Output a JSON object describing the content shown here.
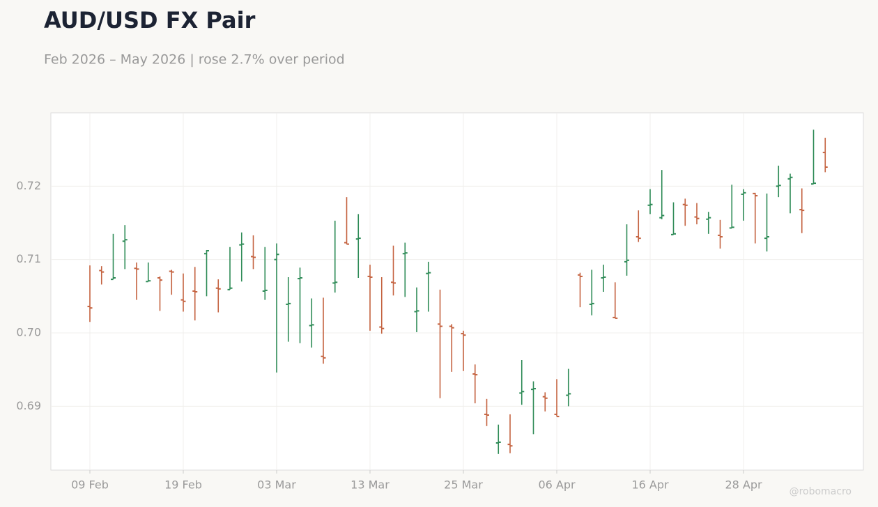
{
  "chart_data": {
    "type": "ohlc",
    "title": "AUD/USD FX Pair",
    "subtitle": "Feb 2026 – May 2026 | rose 2.7% over period",
    "watermark": "@robomacro",
    "categories": [
      "09 Feb",
      null,
      null,
      null,
      null,
      null,
      null,
      null,
      "19 Feb",
      null,
      null,
      null,
      null,
      null,
      null,
      null,
      "03 Mar",
      null,
      null,
      null,
      null,
      null,
      null,
      null,
      "13 Mar",
      null,
      null,
      null,
      null,
      null,
      null,
      null,
      "25 Mar",
      null,
      null,
      null,
      null,
      null,
      null,
      null,
      "06 Apr",
      null,
      null,
      null,
      null,
      null,
      null,
      null,
      "16 Apr",
      null,
      null,
      null,
      null,
      null,
      null,
      null,
      "28 Apr",
      null,
      null,
      null,
      null,
      null,
      null,
      null
    ],
    "open": [
      0.7036,
      0.7085,
      0.7073,
      0.7125,
      0.7088,
      0.707,
      0.7075,
      0.7084,
      0.7045,
      0.7057,
      0.7108,
      0.7061,
      0.7059,
      0.712,
      0.7104,
      0.7057,
      0.71,
      0.7039,
      0.7074,
      0.701,
      0.6968,
      0.7068,
      0.7123,
      0.7128,
      0.7077,
      0.7008,
      0.7069,
      0.7108,
      0.7029,
      0.7081,
      0.7012,
      0.7009,
      0.6999,
      0.6944,
      0.6889,
      0.685,
      0.6848,
      0.6918,
      0.6923,
      0.6913,
      0.6889,
      0.6915,
      0.7079,
      0.7039,
      0.7075,
      0.7021,
      0.7097,
      0.7131,
      0.7174,
      0.7157,
      0.7134,
      0.7175,
      0.7158,
      0.7155,
      0.7133,
      0.7143,
      0.7189,
      0.719,
      0.7129,
      0.72,
      0.721,
      0.7168,
      0.7203,
      0.7246
    ],
    "high": [
      0.7092,
      0.7091,
      0.7135,
      0.7147,
      0.7096,
      0.7096,
      0.7077,
      0.7086,
      0.7081,
      0.709,
      0.7113,
      0.7073,
      0.7117,
      0.7137,
      0.7133,
      0.7117,
      0.7122,
      0.7076,
      0.7089,
      0.7047,
      0.7048,
      0.7153,
      0.7185,
      0.7162,
      0.7093,
      0.7076,
      0.7119,
      0.7123,
      0.7062,
      0.7097,
      0.7059,
      0.7012,
      0.7003,
      0.6957,
      0.691,
      0.6875,
      0.6889,
      0.6963,
      0.6934,
      0.6919,
      0.6937,
      0.6951,
      0.7082,
      0.7086,
      0.7093,
      0.7069,
      0.7148,
      0.7167,
      0.7196,
      0.7222,
      0.7178,
      0.7183,
      0.7177,
      0.7165,
      0.7154,
      0.7202,
      0.7196,
      0.7191,
      0.719,
      0.7228,
      0.7217,
      0.7197,
      0.7277,
      0.7266
    ],
    "low": [
      0.7015,
      0.7066,
      0.7073,
      0.7087,
      0.7045,
      0.707,
      0.703,
      0.7052,
      0.7029,
      0.7017,
      0.705,
      0.7028,
      0.7059,
      0.707,
      0.7087,
      0.7045,
      0.6946,
      0.6988,
      0.6986,
      0.698,
      0.6958,
      0.7055,
      0.7121,
      0.7075,
      0.7003,
      0.6999,
      0.7051,
      0.7049,
      0.7001,
      0.7029,
      0.6911,
      0.6947,
      0.6948,
      0.6904,
      0.6873,
      0.6835,
      0.6836,
      0.6902,
      0.6862,
      0.6893,
      0.6886,
      0.69,
      0.7035,
      0.7024,
      0.7056,
      0.702,
      0.7078,
      0.7124,
      0.7162,
      0.7155,
      0.7134,
      0.7146,
      0.7148,
      0.7135,
      0.7115,
      0.7143,
      0.7153,
      0.7122,
      0.7111,
      0.7185,
      0.7163,
      0.7136,
      0.7203,
      0.7219
    ],
    "close": [
      0.7034,
      0.7083,
      0.7075,
      0.7127,
      0.7087,
      0.7071,
      0.7072,
      0.7083,
      0.7043,
      0.7056,
      0.7112,
      0.706,
      0.7061,
      0.7121,
      0.7103,
      0.7058,
      0.7107,
      0.704,
      0.7075,
      0.7011,
      0.6966,
      0.7069,
      0.7121,
      0.7129,
      0.7076,
      0.7006,
      0.7068,
      0.7109,
      0.703,
      0.7082,
      0.7009,
      0.7007,
      0.6997,
      0.6943,
      0.6888,
      0.6851,
      0.6846,
      0.692,
      0.6924,
      0.6911,
      0.6886,
      0.6917,
      0.7077,
      0.704,
      0.7076,
      0.702,
      0.7099,
      0.7129,
      0.7175,
      0.716,
      0.7135,
      0.7174,
      0.7156,
      0.7157,
      0.7131,
      0.7144,
      0.7191,
      0.7187,
      0.7131,
      0.7201,
      0.7212,
      0.7167,
      0.7204,
      0.7226
    ],
    "up_color": "#2e8b57",
    "down_color": "#c4623f",
    "ylim": [
      0.6813,
      0.73
    ],
    "yticks": [
      0.69,
      {
        "value": 0.7,
        "label": "0.70"
      },
      0.71,
      0.72
    ],
    "grid": true
  }
}
